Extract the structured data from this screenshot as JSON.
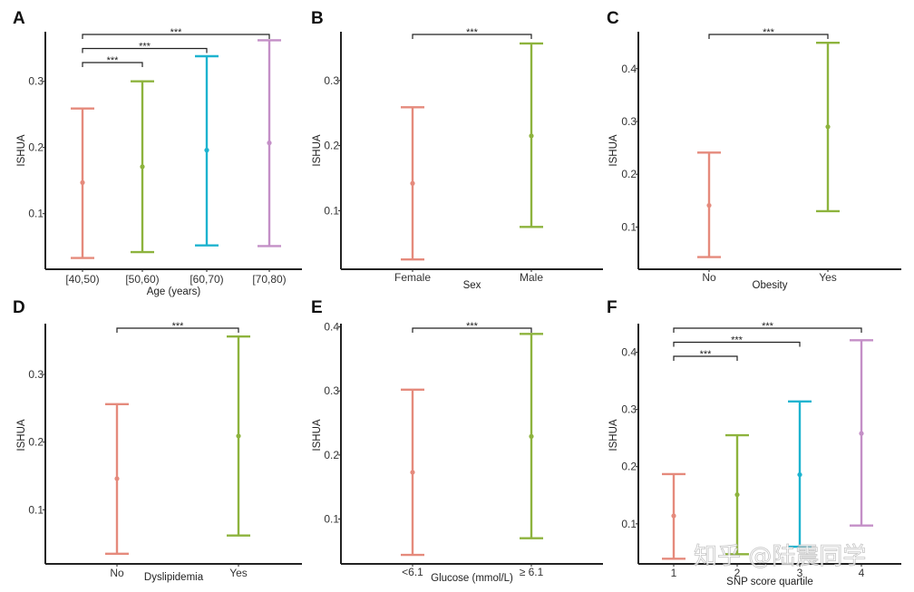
{
  "colors": {
    "series": [
      "#e58a7c",
      "#8db33d",
      "#1db3cf",
      "#c48fc7"
    ],
    "axis": "#222222",
    "bracket": "#222222"
  },
  "watermark": "知乎 @陆震同学",
  "chart_data": [
    {
      "type": "errorbar",
      "panel": "A",
      "title": "",
      "xlabel": "Age (years)",
      "ylabel": "ISHUA",
      "categories": [
        "[40,50)",
        "[50,60)",
        "[60,70)",
        "[70,80)"
      ],
      "mean": [
        0.147,
        0.171,
        0.196,
        0.207
      ],
      "lower": [
        0.033,
        0.042,
        0.052,
        0.051
      ],
      "upper": [
        0.259,
        0.3,
        0.338,
        0.362
      ],
      "yticks": [
        0.1,
        0.2,
        0.3
      ],
      "ytick_labels": [
        "0.1",
        "0.2",
        "0.3"
      ],
      "ylim": [
        0.016,
        0.375
      ],
      "significance": [
        {
          "from": 0,
          "to": 1,
          "label": "***"
        },
        {
          "from": 0,
          "to": 2,
          "label": "***"
        },
        {
          "from": 0,
          "to": 3,
          "label": "***"
        }
      ]
    },
    {
      "type": "errorbar",
      "panel": "B",
      "xlabel": "Sex",
      "ylabel": "ISHUA",
      "categories": [
        "Female",
        "Male"
      ],
      "mean": [
        0.142,
        0.215
      ],
      "lower": [
        0.025,
        0.075
      ],
      "upper": [
        0.259,
        0.357
      ],
      "yticks": [
        0.1,
        0.2,
        0.3
      ],
      "ytick_labels": [
        "0.1",
        "0.2",
        "0.3"
      ],
      "ylim": [
        0.01,
        0.375
      ],
      "significance": [
        {
          "from": 0,
          "to": 1,
          "label": "***"
        }
      ]
    },
    {
      "type": "errorbar",
      "panel": "C",
      "xlabel": "Obesity",
      "ylabel": "ISHUA",
      "categories": [
        "No",
        "Yes"
      ],
      "mean": [
        0.141,
        0.29
      ],
      "lower": [
        0.043,
        0.13
      ],
      "upper": [
        0.241,
        0.449
      ],
      "yticks": [
        0.1,
        0.2,
        0.3,
        0.4
      ],
      "ytick_labels": [
        "0.1",
        "0.2",
        "0.3",
        "0.4"
      ],
      "ylim": [
        0.02,
        0.47
      ],
      "significance": [
        {
          "from": 0,
          "to": 1,
          "label": "***"
        }
      ]
    },
    {
      "type": "errorbar",
      "panel": "D",
      "xlabel": "Dyslipidemia",
      "ylabel": "ISHUA",
      "categories": [
        "No",
        "Yes"
      ],
      "mean": [
        0.146,
        0.209
      ],
      "lower": [
        0.035,
        0.062
      ],
      "upper": [
        0.256,
        0.356
      ],
      "yticks": [
        0.1,
        0.2,
        0.3
      ],
      "ytick_labels": [
        "0.1",
        "0.2",
        "0.3"
      ],
      "ylim": [
        0.02,
        0.375
      ],
      "significance": [
        {
          "from": 0,
          "to": 1,
          "label": "***"
        }
      ]
    },
    {
      "type": "errorbar",
      "panel": "E",
      "xlabel": "Glucose (mmol/L)",
      "ylabel": "ISHUA",
      "categories": [
        "<6.1",
        "≥ 6.1"
      ],
      "mean": [
        0.173,
        0.229
      ],
      "lower": [
        0.044,
        0.07
      ],
      "upper": [
        0.302,
        0.389
      ],
      "yticks": [
        0.1,
        0.2,
        0.3,
        0.4
      ],
      "ytick_labels": [
        "0.1",
        "0.2",
        "0.3",
        "0.4"
      ],
      "ylim": [
        0.03,
        0.405
      ],
      "significance": [
        {
          "from": 0,
          "to": 1,
          "label": "***"
        }
      ]
    },
    {
      "type": "errorbar",
      "panel": "F",
      "xlabel": "SNP score quartile",
      "ylabel": "ISHUA",
      "categories": [
        "1",
        "2",
        "3",
        "4"
      ],
      "mean": [
        0.114,
        0.151,
        0.186,
        0.258
      ],
      "lower": [
        0.039,
        0.047,
        0.06,
        0.097
      ],
      "upper": [
        0.187,
        0.255,
        0.314,
        0.421
      ],
      "yticks": [
        0.1,
        0.2,
        0.3,
        0.4
      ],
      "ytick_labels": [
        "0.1",
        "0.2",
        "0.3",
        "0.4"
      ],
      "ylim": [
        0.03,
        0.45
      ],
      "significance": [
        {
          "from": 0,
          "to": 1,
          "label": "***"
        },
        {
          "from": 0,
          "to": 2,
          "label": "***"
        },
        {
          "from": 0,
          "to": 3,
          "label": "***"
        }
      ]
    }
  ]
}
